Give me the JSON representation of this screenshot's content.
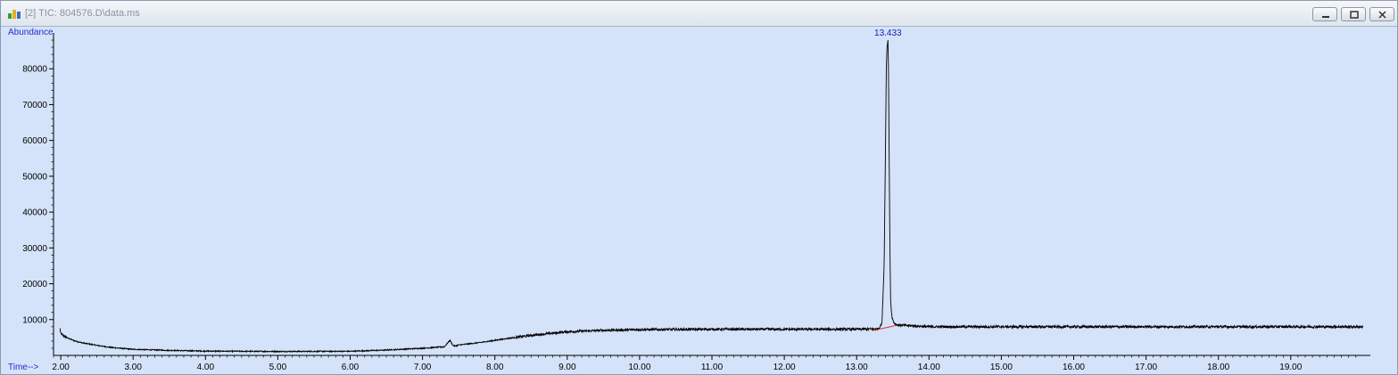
{
  "window": {
    "title": "[2] TIC: 804576.D\\data.ms",
    "controls": [
      "minimize",
      "restore",
      "close"
    ]
  },
  "colors": {
    "plot_background": "#d4e3f9",
    "trace": "#000000",
    "peak_label": "#1a1ab5",
    "axis_label": "#2a2acc",
    "baseline_marker": "#e03030"
  },
  "chart_data": {
    "type": "line",
    "ylabel": "Abundance",
    "xlabel": "Time-->",
    "xlim": [
      1.9,
      20.1
    ],
    "ylim": [
      0,
      90000
    ],
    "x_ticks": [
      2,
      3,
      4,
      5,
      6,
      7,
      8,
      9,
      10,
      11,
      12,
      13,
      14,
      15,
      16,
      17,
      18,
      19
    ],
    "x_tick_labels": [
      "2.00",
      "3.00",
      "4.00",
      "5.00",
      "6.00",
      "7.00",
      "8.00",
      "9.00",
      "10.00",
      "11.00",
      "12.00",
      "13.00",
      "14.00",
      "15.00",
      "16.00",
      "17.00",
      "18.00",
      "19.00"
    ],
    "y_ticks": [
      10000,
      20000,
      30000,
      40000,
      50000,
      60000,
      70000,
      80000
    ],
    "y_tick_labels": [
      "10000",
      "20000",
      "30000",
      "40000",
      "50000",
      "60000",
      "70000",
      "80000"
    ],
    "series": [
      {
        "x": [
          1.99,
          2.0,
          2.1,
          2.2,
          2.3,
          2.5,
          2.7,
          3.0,
          3.5,
          4.0,
          5.0,
          6.0,
          6.5,
          7.0,
          7.3,
          7.38,
          7.42,
          7.45,
          7.5,
          7.8,
          8.0,
          8.2,
          8.5,
          9.0,
          9.5,
          10.0,
          11.0,
          12.0,
          13.0,
          13.3,
          13.35,
          13.38,
          13.4,
          13.41,
          13.42,
          13.433,
          13.44,
          13.45,
          13.46,
          13.47,
          13.49,
          13.52,
          13.56,
          14.0,
          15.0,
          16.0,
          17.0,
          18.0,
          19.0,
          20.0
        ],
        "y": [
          7500,
          6000,
          4800,
          4000,
          3500,
          2800,
          2200,
          1700,
          1400,
          1200,
          1100,
          1150,
          1500,
          2000,
          2400,
          4200,
          2800,
          2600,
          2900,
          3600,
          4200,
          4800,
          5600,
          6600,
          7000,
          7200,
          7300,
          7300,
          7300,
          7400,
          9000,
          25000,
          60000,
          80000,
          86000,
          88000,
          80000,
          55000,
          30000,
          15000,
          10500,
          9000,
          8500,
          8000,
          8000,
          8000,
          8000,
          8000,
          8000,
          8000
        ]
      }
    ],
    "annotations": [
      {
        "text": "13.433",
        "x": 13.433,
        "y": 88000
      }
    ],
    "baseline_segment": {
      "x": [
        13.22,
        13.55
      ],
      "y": [
        6900,
        8400
      ]
    }
  }
}
